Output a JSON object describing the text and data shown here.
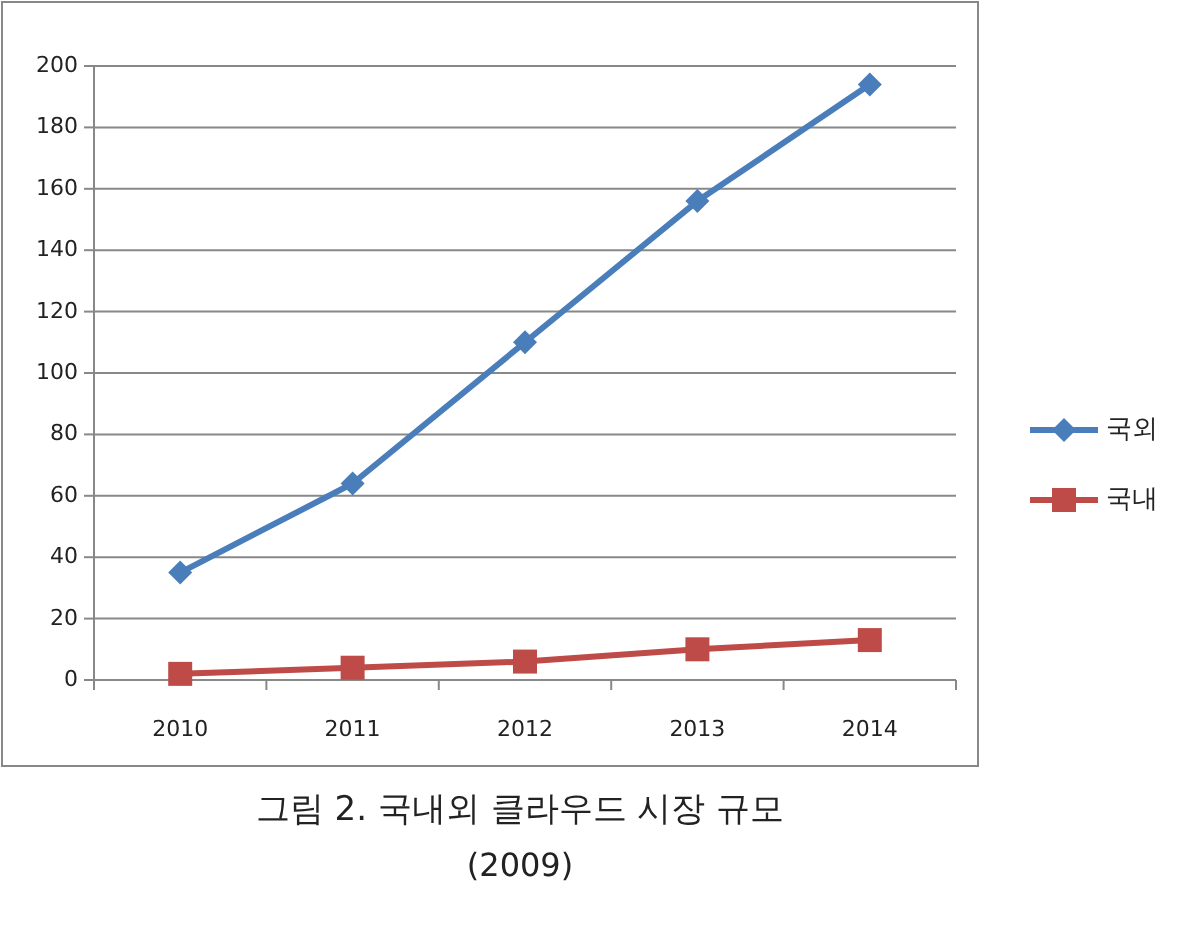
{
  "chart_data": {
    "type": "line",
    "title": "그림 2. 국내외 클라우드 시장 규모",
    "annotations": [
      "(2009)"
    ],
    "categories": [
      "2010",
      "2011",
      "2012",
      "2013",
      "2014"
    ],
    "series": [
      {
        "name": "국외",
        "color": "#4a7ebb",
        "values": [
          35,
          64,
          110,
          156,
          194
        ],
        "marker": "diamond"
      },
      {
        "name": "국내",
        "color": "#be4b48",
        "values": [
          2,
          4,
          6,
          10,
          13
        ],
        "marker": "square"
      }
    ],
    "ylim": [
      0,
      200
    ],
    "yticks": [
      0,
      20,
      40,
      60,
      80,
      100,
      120,
      140,
      160,
      180,
      200
    ],
    "grid": "y",
    "legend": "right"
  }
}
